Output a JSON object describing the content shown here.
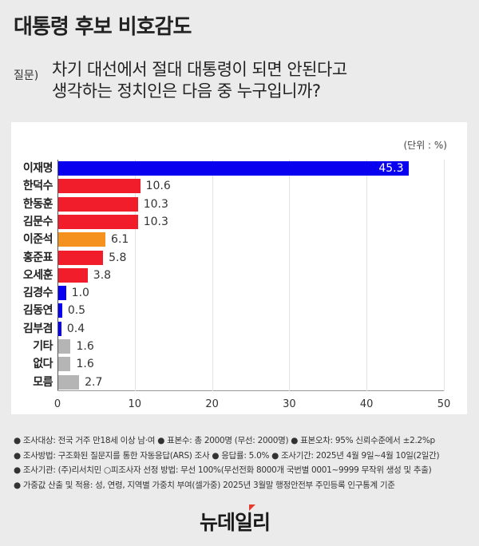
{
  "header": {
    "title": "대통령 후보 비호감도",
    "question_label": "질문)",
    "question_line1": "차기 대선에서 절대 대통령이 되면 안된다고",
    "question_line2": "생각하는 정치인은 다음 중 누구입니까?"
  },
  "colors": {
    "blue": "#0a00f0",
    "red": "#f21d2a",
    "orange": "#f5921f",
    "gray": "#b5b5b5"
  },
  "chart_data": {
    "type": "bar",
    "orientation": "horizontal",
    "title": "대통령 후보 비호감도",
    "unit_label": "(단위 : %)",
    "categories": [
      "이재명",
      "한덕수",
      "한동훈",
      "김문수",
      "이준석",
      "홍준표",
      "오세훈",
      "김경수",
      "김동연",
      "김부겸",
      "기타",
      "없다",
      "모름"
    ],
    "values": [
      45.3,
      10.6,
      10.3,
      10.3,
      6.1,
      5.8,
      3.8,
      1.0,
      0.5,
      0.4,
      1.6,
      1.6,
      2.7
    ],
    "value_labels": [
      "45.3",
      "10.6",
      "10.3",
      "10.3",
      "6.1",
      "5.8",
      "3.8",
      "1.0",
      "0.5",
      "0.4",
      "1.6",
      "1.6",
      "2.7"
    ],
    "bar_colors": [
      "blue",
      "red",
      "red",
      "red",
      "orange",
      "red",
      "red",
      "blue",
      "blue",
      "blue",
      "gray",
      "gray",
      "gray"
    ],
    "xlim": [
      0,
      50
    ],
    "xticks": [
      "0",
      "10",
      "20",
      "30",
      "40",
      "50"
    ],
    "grid": true,
    "legend": "none"
  },
  "notes": [
    "● 조사대상: 전국 거주 만18세 이상 남·여 ● 표본수: 총 2000명 (무선: 2000명) ● 표본오차: 95% 신뢰수준에서 ±2.2%p",
    "● 조사방법: 구조화된 질문지를 통한 자동응답(ARS) 조사 ● 응답률: 5.0% ● 조사기간: 2025년 4월 9일~4월 10일(2일간)",
    "● 조사기관: (주)리서치민 ○피조사자 선정 방법: 무선 100%(무선전화 8000개 국번별 0001~9999 무작위 생성 및 추출)",
    "● 가중값 산출 및 적용: 성, 연령, 지역별 가중치 부여(셀가중) 2025년 3월말 행정안전부 주민등록 인구통계 기준"
  ],
  "footer": {
    "logo": "뉴데일리"
  }
}
